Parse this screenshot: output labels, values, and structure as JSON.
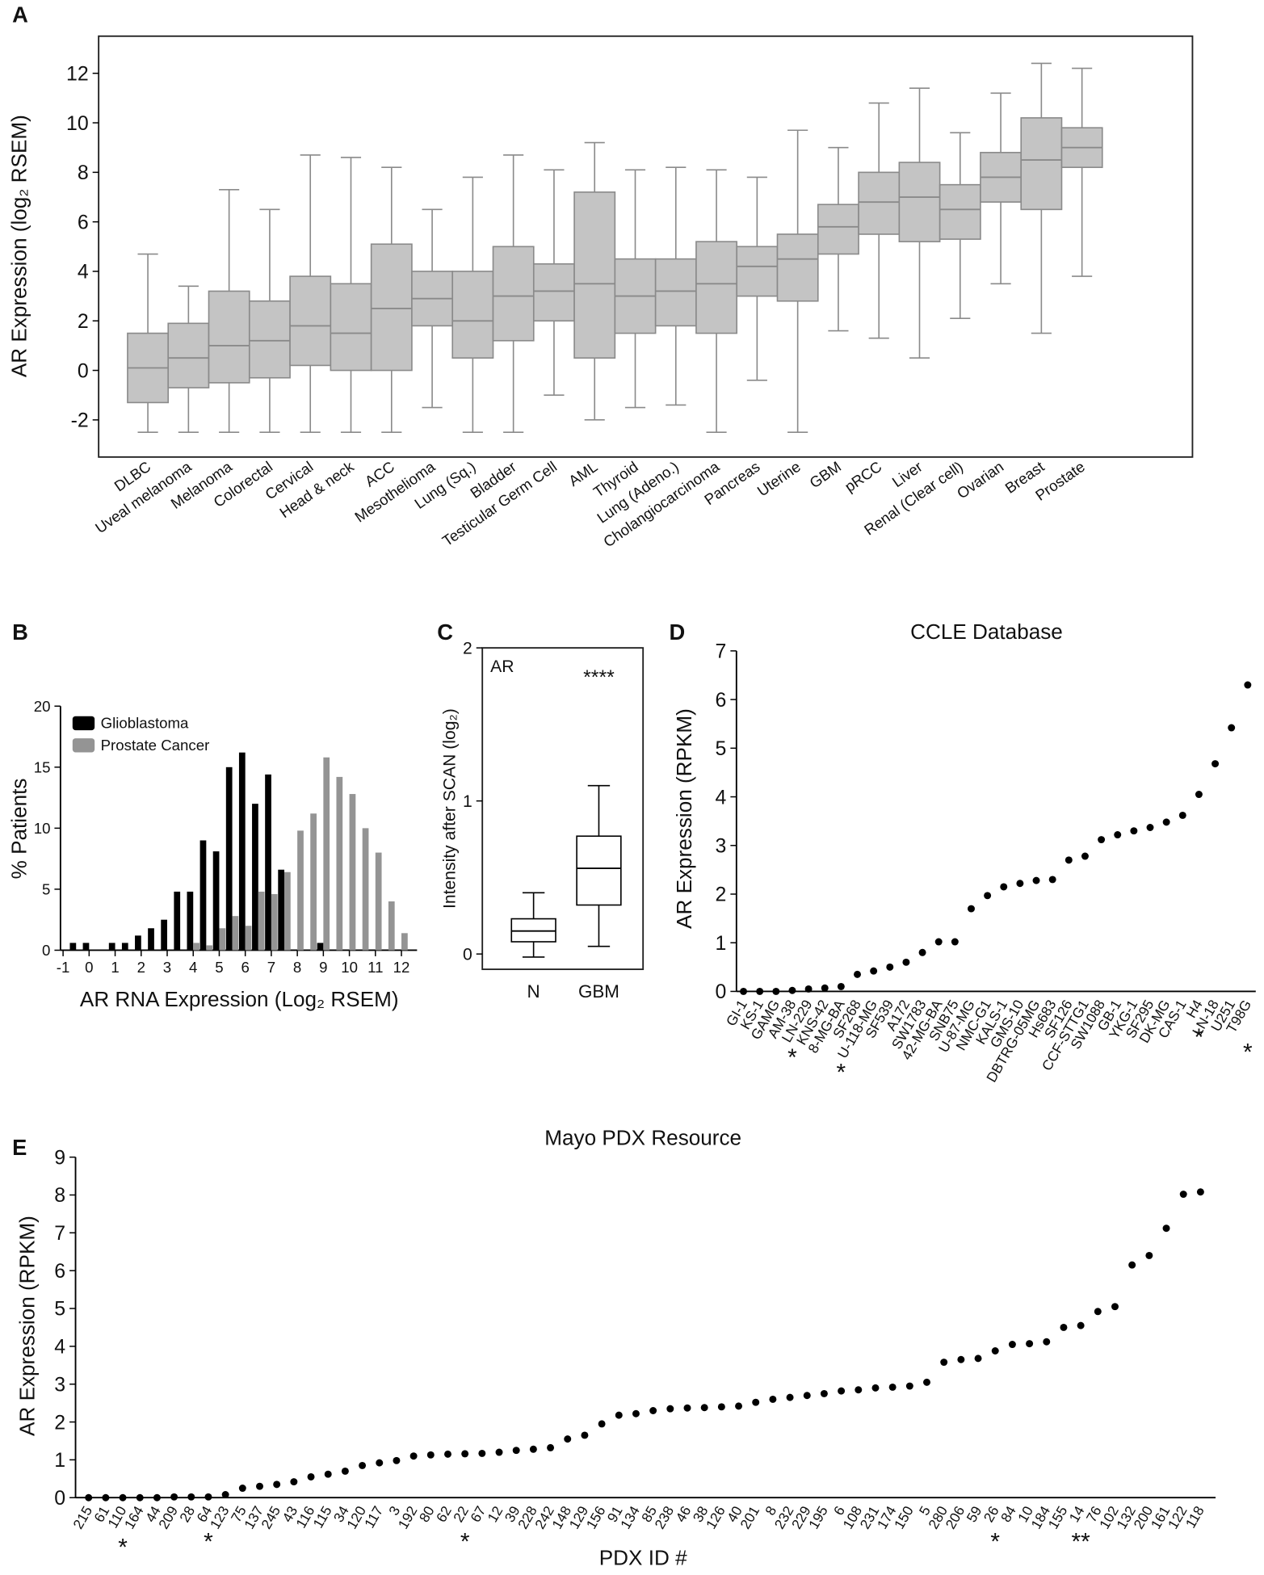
{
  "chart_data": [
    {
      "panel": "A",
      "type": "box",
      "y_label": "AR Expression (log₂ RSEM)",
      "categories": [
        "DLBC",
        "Uveal melanoma",
        "Melanoma",
        "Colorectal",
        "Cervical",
        "Head & neck",
        "ACC",
        "Mesothelioma",
        "Lung (Sq.)",
        "Bladder",
        "Testicular Germ Cell",
        "AML",
        "Thyroid",
        "Lung (Adeno.)",
        "Cholangiocarcinoma",
        "Pancreas",
        "Uterine",
        "GBM",
        "pRCC",
        "Liver",
        "Renal (Clear cell)",
        "Ovarian",
        "Breast",
        "Prostate"
      ],
      "min": [
        -2.5,
        -2.5,
        -2.5,
        -2.5,
        -2.5,
        -2.5,
        -2.5,
        -1.5,
        -2.5,
        -2.5,
        -1.0,
        -2.0,
        -1.5,
        -1.4,
        -2.5,
        -0.4,
        -2.5,
        1.6,
        1.3,
        0.5,
        2.1,
        3.5,
        1.5,
        3.8
      ],
      "q1": [
        -1.3,
        -0.7,
        -0.5,
        -0.3,
        0.2,
        0.0,
        0.0,
        1.8,
        0.5,
        1.2,
        2.0,
        0.5,
        1.5,
        1.8,
        1.5,
        3.0,
        2.8,
        4.7,
        5.5,
        5.2,
        5.3,
        6.8,
        6.5,
        8.2
      ],
      "median": [
        0.1,
        0.5,
        1.0,
        1.2,
        1.8,
        1.5,
        2.5,
        2.9,
        2.0,
        3.0,
        3.2,
        3.5,
        3.0,
        3.2,
        3.5,
        4.2,
        4.5,
        5.8,
        6.8,
        7.0,
        6.5,
        7.8,
        8.5,
        9.0
      ],
      "q3": [
        1.5,
        1.9,
        3.2,
        2.8,
        3.8,
        3.5,
        5.1,
        4.0,
        4.0,
        5.0,
        4.3,
        7.2,
        4.5,
        4.5,
        5.2,
        5.0,
        5.5,
        6.7,
        8.0,
        8.4,
        7.5,
        8.8,
        10.2,
        9.8
      ],
      "max": [
        4.7,
        3.4,
        7.3,
        6.5,
        8.7,
        8.6,
        8.2,
        6.5,
        7.8,
        8.7,
        8.1,
        9.2,
        8.1,
        8.2,
        8.1,
        7.8,
        9.7,
        9.0,
        10.8,
        11.4,
        9.6,
        11.2,
        12.4,
        12.2
      ],
      "box_fill": "#c4c4c4",
      "box_stroke": "#8a8a8a",
      "ylim": [
        -3.5,
        13.5
      ],
      "yticks": [
        -2,
        0,
        2,
        4,
        6,
        8,
        10,
        12
      ]
    },
    {
      "panel": "B",
      "type": "bar",
      "y_label": "% Patients",
      "x_label": "AR RNA Expression (Log₂ RSEM)",
      "x": [
        -0.5,
        0,
        0.5,
        1,
        1.5,
        2,
        2.5,
        3,
        3.5,
        4,
        4.5,
        5,
        5.5,
        6,
        6.5,
        7,
        7.5,
        8,
        8.5,
        9,
        9.5,
        10,
        10.5,
        11,
        11.5,
        12
      ],
      "series": [
        {
          "name": "Glioblastoma",
          "color": "#000000",
          "values": [
            0.6,
            0.6,
            null,
            0.6,
            0.6,
            1.2,
            1.8,
            2.5,
            4.8,
            4.8,
            9.0,
            8.1,
            15.0,
            16.2,
            12.0,
            14.4,
            6.6,
            null,
            null,
            0.6,
            null,
            null,
            null,
            null,
            null,
            null
          ]
        },
        {
          "name": "Prostate Cancer",
          "color": "#949494",
          "values": [
            null,
            null,
            null,
            null,
            null,
            null,
            null,
            null,
            null,
            0.6,
            0.4,
            1.8,
            2.8,
            2.0,
            4.8,
            4.6,
            6.4,
            9.8,
            11.2,
            15.8,
            14.2,
            12.8,
            10.0,
            8.0,
            4.0,
            1.4
          ]
        }
      ],
      "bar_width": 0.24,
      "legend": "upper left",
      "xlim": [
        -1.1,
        12.6
      ],
      "xticks": [
        -1,
        0,
        1,
        2,
        3,
        4,
        5,
        6,
        7,
        8,
        9,
        10,
        11,
        12
      ],
      "ylim": [
        0,
        20
      ],
      "yticks": [
        0,
        5,
        10,
        15,
        20
      ]
    },
    {
      "panel": "C",
      "type": "box",
      "y_label": "Intensity after SCAN (log₂)",
      "categories": [
        "N",
        "GBM"
      ],
      "min": [
        -0.02,
        0.05
      ],
      "q1": [
        0.08,
        0.32
      ],
      "median": [
        0.15,
        0.56
      ],
      "q3": [
        0.23,
        0.77
      ],
      "max": [
        0.4,
        1.1
      ],
      "box_fill": "#ffffff",
      "box_stroke": "#000000",
      "annotations": [
        {
          "text": "AR"
        },
        {
          "text": "****",
          "at": "GBM"
        }
      ],
      "ylim": [
        -0.1,
        2
      ],
      "yticks": [
        0,
        1,
        2
      ]
    },
    {
      "panel": "D",
      "type": "scatter",
      "title": "CCLE Database",
      "y_label": "AR Expression  (RPKM)",
      "categories": [
        "GI-1",
        "KS-1",
        "GAMG",
        "AM-38",
        "LN-229",
        "KNS-42",
        "8-MG-BA",
        "SF268",
        "U-118-MG",
        "SF539",
        "A172",
        "SW1783",
        "42-MG-BA",
        "SNB75",
        "U-87-MG",
        "NMC-G1",
        "KALS-1",
        "GMS-10",
        "DBTRG-05MG",
        "Hs683",
        "SF126",
        "CCF-STTG1",
        "SW1088",
        "GB-1",
        "YKG-1",
        "SF295",
        "DK-MG",
        "CAS-1",
        "H4",
        "LN-18",
        "U251",
        "T98G"
      ],
      "values": [
        0,
        0,
        0,
        0.02,
        0.05,
        0.07,
        0.1,
        0.35,
        0.42,
        0.5,
        0.6,
        0.8,
        1.02,
        1.02,
        1.7,
        1.97,
        2.15,
        2.22,
        2.28,
        2.3,
        2.7,
        2.78,
        3.12,
        3.22,
        3.3,
        3.37,
        3.48,
        3.62,
        4.05,
        4.68,
        5.42,
        6.3
      ],
      "color": "#000000",
      "annotations": [
        {
          "text": "*",
          "at": "AM-38"
        },
        {
          "text": "*",
          "at": "8-MG-BA"
        },
        {
          "text": "*",
          "at": "H4"
        },
        {
          "text": "*",
          "at": "T98G"
        }
      ],
      "ylim": [
        0,
        7
      ],
      "yticks": [
        0,
        1,
        2,
        3,
        4,
        5,
        6,
        7
      ]
    },
    {
      "panel": "E",
      "type": "scatter",
      "title": "Mayo PDX Resource",
      "y_label": "AR Expression  (RPKM)",
      "x_label": "PDX ID #",
      "categories": [
        "215",
        "61",
        "110",
        "164",
        "44",
        "209",
        "28",
        "64",
        "123",
        "75",
        "137",
        "245",
        "43",
        "116",
        "115",
        "34",
        "120",
        "117",
        "3",
        "192",
        "80",
        "62",
        "22",
        "67",
        "12",
        "39",
        "228",
        "242",
        "148",
        "129",
        "156",
        "91",
        "134",
        "85",
        "238",
        "46",
        "38",
        "126",
        "40",
        "201",
        "8",
        "232",
        "229",
        "195",
        "6",
        "108",
        "231",
        "174",
        "150",
        "5",
        "280",
        "206",
        "59",
        "26",
        "84",
        "10",
        "184",
        "155",
        "14",
        "76",
        "102",
        "132",
        "200",
        "161",
        "122",
        "118"
      ],
      "values": [
        0,
        0,
        0,
        0,
        0,
        0.02,
        0.02,
        0.02,
        0.08,
        0.25,
        0.3,
        0.35,
        0.42,
        0.55,
        0.62,
        0.7,
        0.85,
        0.92,
        0.98,
        1.1,
        1.13,
        1.15,
        1.16,
        1.17,
        1.2,
        1.25,
        1.28,
        1.32,
        1.55,
        1.65,
        1.95,
        2.18,
        2.22,
        2.3,
        2.35,
        2.37,
        2.38,
        2.4,
        2.42,
        2.52,
        2.6,
        2.65,
        2.7,
        2.75,
        2.82,
        2.85,
        2.9,
        2.92,
        2.95,
        3.05,
        3.58,
        3.65,
        3.68,
        3.88,
        4.05,
        4.07,
        4.12,
        4.5,
        4.55,
        4.92,
        5.05,
        6.15,
        6.4,
        7.12,
        8.02,
        8.08
      ],
      "color": "#000000",
      "annotations": [
        {
          "text": "*",
          "at": "110"
        },
        {
          "text": "*",
          "at": "64"
        },
        {
          "text": "*",
          "at": "22"
        },
        {
          "text": "*",
          "at": "26"
        },
        {
          "text": "**",
          "at": "14"
        }
      ],
      "ylim": [
        0,
        9
      ],
      "yticks": [
        0,
        1,
        2,
        3,
        4,
        5,
        6,
        7,
        8,
        9
      ]
    }
  ]
}
